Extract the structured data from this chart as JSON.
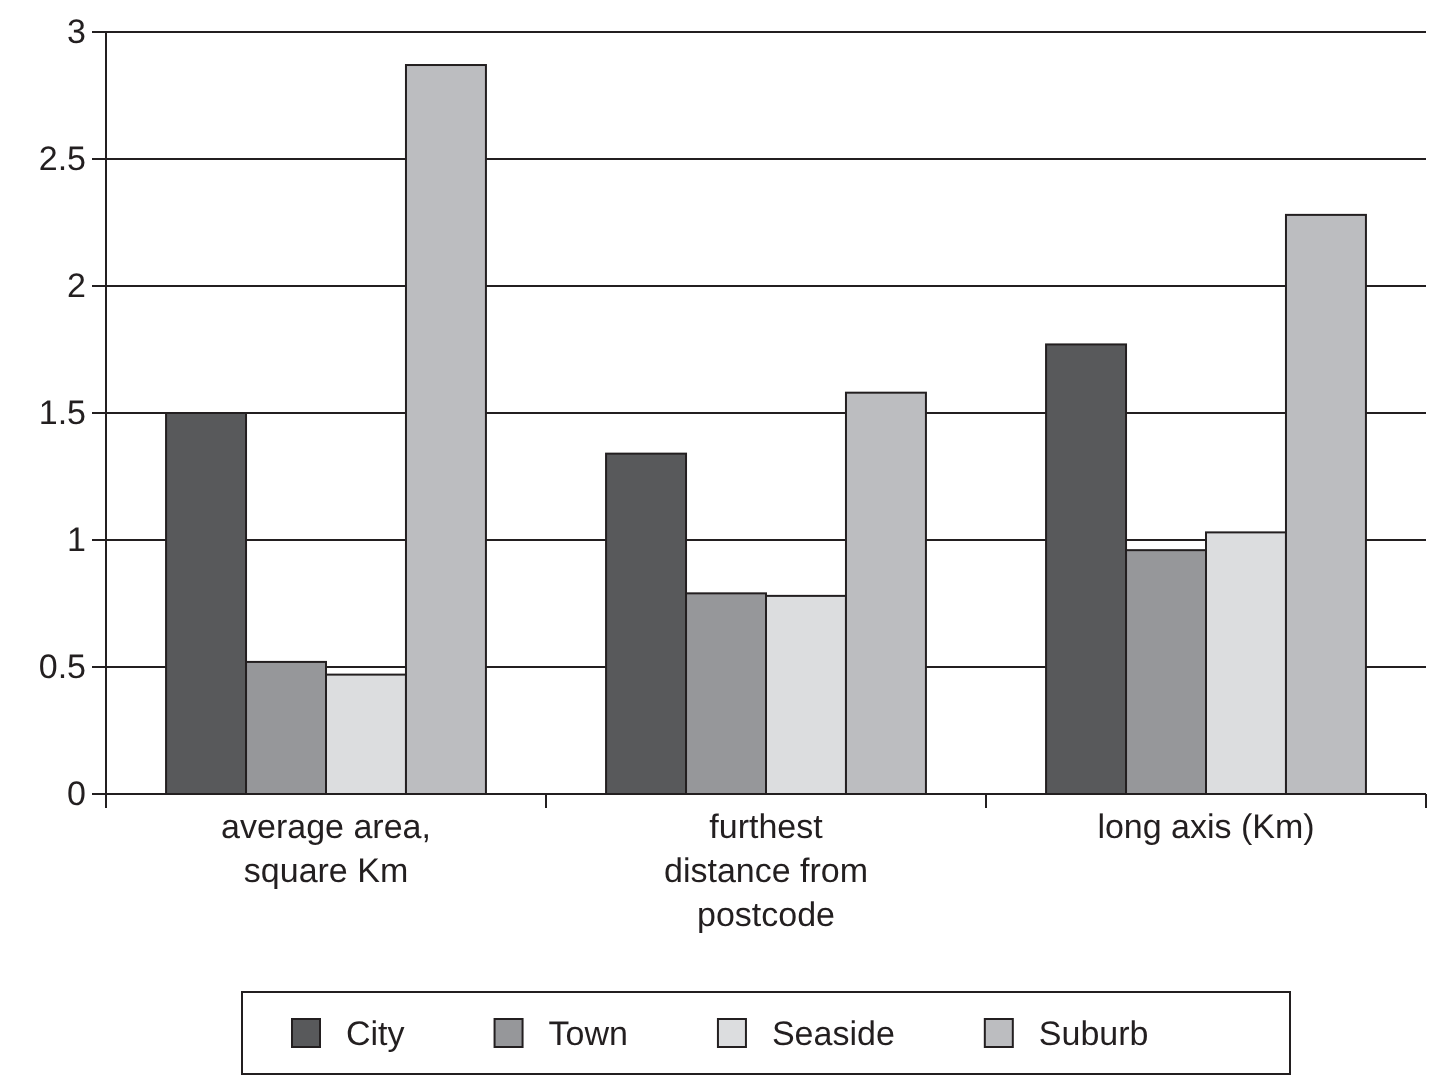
{
  "chart_data": {
    "type": "bar",
    "categories": [
      "average area, square Km",
      "furthest distance from postcode",
      "long axis (Km)"
    ],
    "series": [
      {
        "name": "City",
        "color": "#58595b",
        "values": [
          1.5,
          1.34,
          1.77
        ]
      },
      {
        "name": "Town",
        "color": "#96979a",
        "values": [
          0.52,
          0.79,
          0.96
        ]
      },
      {
        "name": "Seaside",
        "color": "#dcdddf",
        "values": [
          0.47,
          0.78,
          1.03
        ]
      },
      {
        "name": "Suburb",
        "color": "#bcbdc0",
        "values": [
          2.87,
          1.58,
          2.28
        ]
      }
    ],
    "ylim": [
      0,
      3
    ],
    "yticks": [
      0,
      0.5,
      1,
      1.5,
      2,
      2.5,
      3
    ],
    "grid": "y",
    "legend": "bottom"
  }
}
